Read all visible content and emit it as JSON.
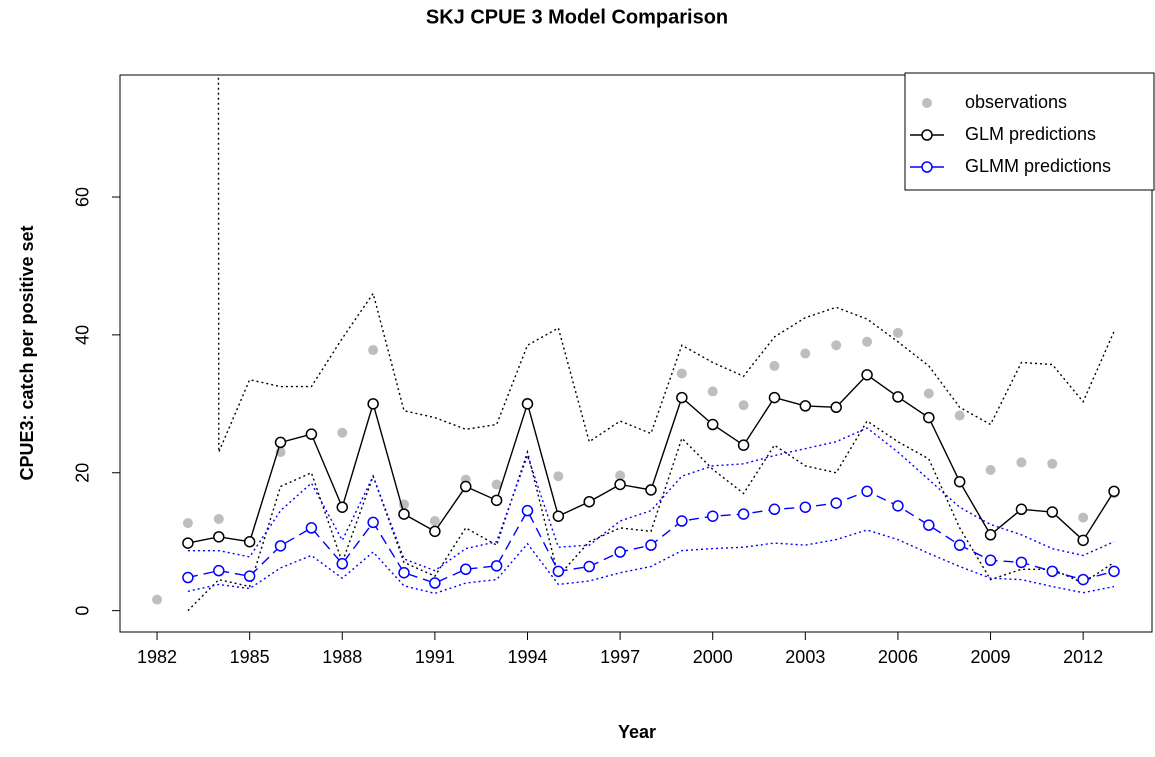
{
  "chart_data": {
    "type": "line",
    "title": "SKJ CPUE 3 Model Comparison",
    "x_label": "Year",
    "y_label": "CPUE3: catch per positive set",
    "x": [
      1982,
      1983,
      1984,
      1985,
      1986,
      1987,
      1988,
      1989,
      1990,
      1991,
      1992,
      1993,
      1994,
      1995,
      1996,
      1997,
      1998,
      1999,
      2000,
      2001,
      2002,
      2003,
      2004,
      2005,
      2006,
      2007,
      2008,
      2009,
      2010,
      2011,
      2012,
      2013
    ],
    "series": [
      {
        "name": "observations",
        "color": "#bebebe",
        "marker": "point",
        "values": [
          1.6,
          12.7,
          13.3,
          10,
          23,
          25.7,
          25.8,
          37.8,
          15.4,
          13,
          19,
          18.3,
          30.2,
          19.5,
          15.7,
          19.6,
          17.7,
          34.4,
          31.8,
          29.8,
          35.5,
          37.3,
          38.5,
          39,
          40.3,
          31.5,
          28.3,
          20.4,
          21.5,
          21.3,
          13.5,
          17
        ]
      },
      {
        "name": "GLM predictions",
        "color": "#000000",
        "marker": "circle",
        "values": [
          null,
          9.8,
          10.7,
          10,
          24.4,
          25.6,
          15,
          30,
          14,
          11.5,
          18,
          16,
          30,
          13.7,
          15.8,
          18.3,
          17.5,
          30.9,
          27,
          24,
          30.9,
          29.7,
          29.5,
          34.2,
          31,
          28,
          18.7,
          11,
          14.7,
          14.3,
          10.2,
          17.3
        ],
        "lower": [
          null,
          0,
          4.5,
          3.5,
          18,
          20,
          7,
          19.5,
          7,
          5,
          12,
          9.5,
          23,
          5,
          10,
          12,
          11.5,
          25,
          20.5,
          17,
          24,
          21,
          20,
          27.5,
          24.5,
          22,
          12,
          4.5,
          6,
          6,
          4,
          7
        ],
        "upper": [
          null,
          5000,
          23,
          33.5,
          32.5,
          32.5,
          39.5,
          46,
          29,
          28,
          26.3,
          27,
          38.5,
          41,
          24.5,
          27.5,
          25.7,
          38.5,
          36,
          34,
          39.7,
          42.5,
          44,
          42.3,
          39,
          35.5,
          29.5,
          27,
          36,
          35.7,
          30.3,
          40.5
        ]
      },
      {
        "name": "GLMM predictions",
        "color": "#0000ff",
        "marker": "circle",
        "values": [
          null,
          4.8,
          5.8,
          5,
          9.4,
          12,
          6.8,
          12.8,
          5.5,
          4,
          6,
          6.5,
          14.5,
          5.7,
          6.4,
          8.5,
          9.5,
          13,
          13.7,
          14,
          14.7,
          15,
          15.6,
          17.3,
          15.2,
          12.4,
          9.5,
          7.3,
          7,
          5.7,
          4.5,
          5.7
        ],
        "lower": [
          null,
          2.8,
          3.8,
          3.2,
          6.2,
          8,
          4.7,
          8.5,
          3.6,
          2.5,
          4,
          4.5,
          9.7,
          3.8,
          4.3,
          5.5,
          6.4,
          8.7,
          9,
          9.2,
          9.8,
          9.5,
          10.3,
          11.7,
          10.3,
          8.3,
          6.4,
          4.7,
          4.5,
          3.5,
          2.6,
          3.5
        ],
        "upper": [
          null,
          8.7,
          8.7,
          7.8,
          14.5,
          18.5,
          10.2,
          19.5,
          7.5,
          5.8,
          9,
          10,
          22.5,
          9.2,
          9.5,
          13,
          14.5,
          19.5,
          21,
          21.3,
          22.5,
          23.5,
          24.5,
          26.5,
          23,
          19,
          15,
          12.5,
          11,
          9,
          8,
          10
        ]
      }
    ],
    "xlim": [
      1980.8,
      2014.23
    ],
    "xticks": [
      1982,
      1985,
      1988,
      1991,
      1994,
      1997,
      2000,
      2003,
      2006,
      2009,
      2012
    ],
    "ylim": [
      -3.1,
      77.7
    ],
    "yticks": [
      0,
      20,
      40,
      60
    ],
    "legend": "top-right",
    "grid": false
  }
}
